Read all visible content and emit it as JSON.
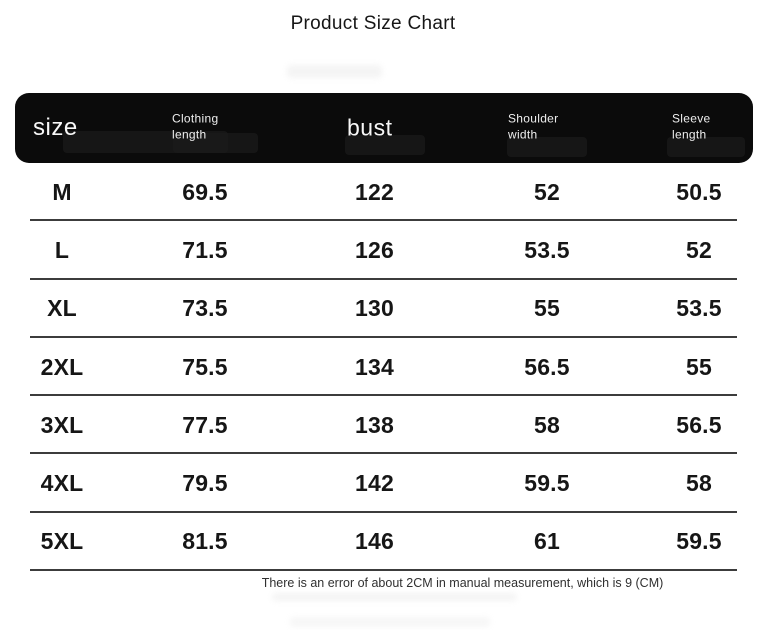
{
  "title": "Product Size Chart",
  "header": {
    "size_label": "size",
    "clothing_line1": "Clothing",
    "clothing_line2": "length",
    "bust_label": "bust",
    "shoulder_line1": "Shoulder",
    "shoulder_line2": "width",
    "sleeve_line1": "Sleeve",
    "sleeve_line2": "length"
  },
  "footer_note": "There is an error of about 2CM in manual measurement, which is 9 (CM)",
  "colors": {
    "header_bg": "#0b0b0b",
    "header_text": "#f7f7f7",
    "body_text": "#161616",
    "divider": "#3c3c3c",
    "background": "#ffffff"
  },
  "chart_data": {
    "type": "table",
    "title": "Product Size Chart",
    "columns": [
      "size",
      "Clothing length",
      "bust",
      "Shoulder width",
      "Sleeve length"
    ],
    "unit": "CM",
    "rows": [
      {
        "size": "M",
        "clothing_length": "69.5",
        "bust": "122",
        "shoulder_width": "52",
        "sleeve_length": "50.5"
      },
      {
        "size": "L",
        "clothing_length": "71.5",
        "bust": "126",
        "shoulder_width": "53.5",
        "sleeve_length": "52"
      },
      {
        "size": "XL",
        "clothing_length": "73.5",
        "bust": "130",
        "shoulder_width": "55",
        "sleeve_length": "53.5"
      },
      {
        "size": "2XL",
        "clothing_length": "75.5",
        "bust": "134",
        "shoulder_width": "56.5",
        "sleeve_length": "55"
      },
      {
        "size": "3XL",
        "clothing_length": "77.5",
        "bust": "138",
        "shoulder_width": "58",
        "sleeve_length": "56.5"
      },
      {
        "size": "4XL",
        "clothing_length": "79.5",
        "bust": "142",
        "shoulder_width": "59.5",
        "sleeve_length": "58"
      },
      {
        "size": "5XL",
        "clothing_length": "81.5",
        "bust": "146",
        "shoulder_width": "61",
        "sleeve_length": "59.5"
      }
    ]
  }
}
